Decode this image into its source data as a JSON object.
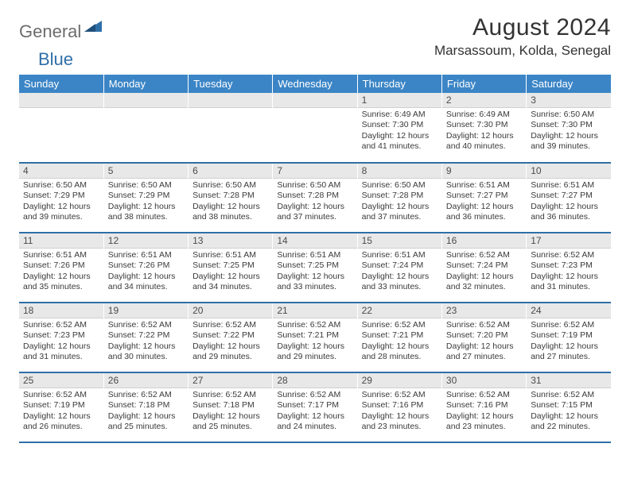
{
  "brand": {
    "part1": "General",
    "part2": "Blue"
  },
  "title": {
    "month": "August 2024",
    "location": "Marsassoum, Kolda, Senegal"
  },
  "colors": {
    "header_bg": "#3b85c6",
    "header_text": "#ffffff",
    "daynum_bg": "#e8e8e8",
    "cell_border": "#2f6fa8",
    "body_text": "#3a3a3a"
  },
  "weekdays": [
    "Sunday",
    "Monday",
    "Tuesday",
    "Wednesday",
    "Thursday",
    "Friday",
    "Saturday"
  ],
  "labels": {
    "sunrise": "Sunrise:",
    "sunset": "Sunset:",
    "daylight": "Daylight:"
  },
  "weeks": [
    [
      {
        "n": "",
        "sr": "",
        "ss": "",
        "dl": ""
      },
      {
        "n": "",
        "sr": "",
        "ss": "",
        "dl": ""
      },
      {
        "n": "",
        "sr": "",
        "ss": "",
        "dl": ""
      },
      {
        "n": "",
        "sr": "",
        "ss": "",
        "dl": ""
      },
      {
        "n": "1",
        "sr": "6:49 AM",
        "ss": "7:30 PM",
        "dl": "12 hours and 41 minutes."
      },
      {
        "n": "2",
        "sr": "6:49 AM",
        "ss": "7:30 PM",
        "dl": "12 hours and 40 minutes."
      },
      {
        "n": "3",
        "sr": "6:50 AM",
        "ss": "7:30 PM",
        "dl": "12 hours and 39 minutes."
      }
    ],
    [
      {
        "n": "4",
        "sr": "6:50 AM",
        "ss": "7:29 PM",
        "dl": "12 hours and 39 minutes."
      },
      {
        "n": "5",
        "sr": "6:50 AM",
        "ss": "7:29 PM",
        "dl": "12 hours and 38 minutes."
      },
      {
        "n": "6",
        "sr": "6:50 AM",
        "ss": "7:28 PM",
        "dl": "12 hours and 38 minutes."
      },
      {
        "n": "7",
        "sr": "6:50 AM",
        "ss": "7:28 PM",
        "dl": "12 hours and 37 minutes."
      },
      {
        "n": "8",
        "sr": "6:50 AM",
        "ss": "7:28 PM",
        "dl": "12 hours and 37 minutes."
      },
      {
        "n": "9",
        "sr": "6:51 AM",
        "ss": "7:27 PM",
        "dl": "12 hours and 36 minutes."
      },
      {
        "n": "10",
        "sr": "6:51 AM",
        "ss": "7:27 PM",
        "dl": "12 hours and 36 minutes."
      }
    ],
    [
      {
        "n": "11",
        "sr": "6:51 AM",
        "ss": "7:26 PM",
        "dl": "12 hours and 35 minutes."
      },
      {
        "n": "12",
        "sr": "6:51 AM",
        "ss": "7:26 PM",
        "dl": "12 hours and 34 minutes."
      },
      {
        "n": "13",
        "sr": "6:51 AM",
        "ss": "7:25 PM",
        "dl": "12 hours and 34 minutes."
      },
      {
        "n": "14",
        "sr": "6:51 AM",
        "ss": "7:25 PM",
        "dl": "12 hours and 33 minutes."
      },
      {
        "n": "15",
        "sr": "6:51 AM",
        "ss": "7:24 PM",
        "dl": "12 hours and 33 minutes."
      },
      {
        "n": "16",
        "sr": "6:52 AM",
        "ss": "7:24 PM",
        "dl": "12 hours and 32 minutes."
      },
      {
        "n": "17",
        "sr": "6:52 AM",
        "ss": "7:23 PM",
        "dl": "12 hours and 31 minutes."
      }
    ],
    [
      {
        "n": "18",
        "sr": "6:52 AM",
        "ss": "7:23 PM",
        "dl": "12 hours and 31 minutes."
      },
      {
        "n": "19",
        "sr": "6:52 AM",
        "ss": "7:22 PM",
        "dl": "12 hours and 30 minutes."
      },
      {
        "n": "20",
        "sr": "6:52 AM",
        "ss": "7:22 PM",
        "dl": "12 hours and 29 minutes."
      },
      {
        "n": "21",
        "sr": "6:52 AM",
        "ss": "7:21 PM",
        "dl": "12 hours and 29 minutes."
      },
      {
        "n": "22",
        "sr": "6:52 AM",
        "ss": "7:21 PM",
        "dl": "12 hours and 28 minutes."
      },
      {
        "n": "23",
        "sr": "6:52 AM",
        "ss": "7:20 PM",
        "dl": "12 hours and 27 minutes."
      },
      {
        "n": "24",
        "sr": "6:52 AM",
        "ss": "7:19 PM",
        "dl": "12 hours and 27 minutes."
      }
    ],
    [
      {
        "n": "25",
        "sr": "6:52 AM",
        "ss": "7:19 PM",
        "dl": "12 hours and 26 minutes."
      },
      {
        "n": "26",
        "sr": "6:52 AM",
        "ss": "7:18 PM",
        "dl": "12 hours and 25 minutes."
      },
      {
        "n": "27",
        "sr": "6:52 AM",
        "ss": "7:18 PM",
        "dl": "12 hours and 25 minutes."
      },
      {
        "n": "28",
        "sr": "6:52 AM",
        "ss": "7:17 PM",
        "dl": "12 hours and 24 minutes."
      },
      {
        "n": "29",
        "sr": "6:52 AM",
        "ss": "7:16 PM",
        "dl": "12 hours and 23 minutes."
      },
      {
        "n": "30",
        "sr": "6:52 AM",
        "ss": "7:16 PM",
        "dl": "12 hours and 23 minutes."
      },
      {
        "n": "31",
        "sr": "6:52 AM",
        "ss": "7:15 PM",
        "dl": "12 hours and 22 minutes."
      }
    ]
  ]
}
